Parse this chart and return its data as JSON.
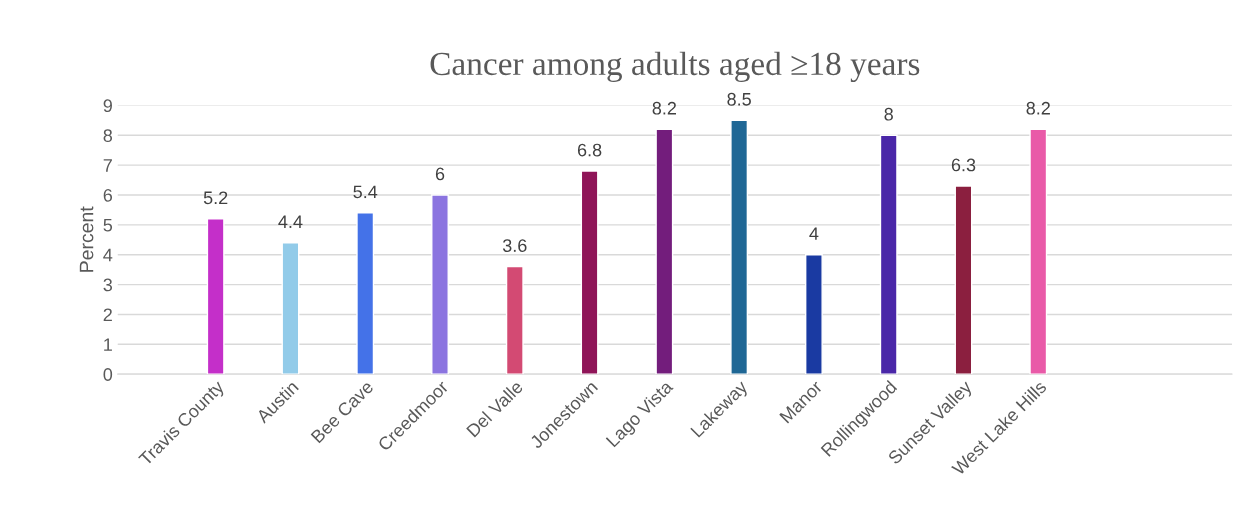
{
  "chart_data": {
    "type": "bar",
    "title": "Cancer among adults aged ≥18 years",
    "ylabel": "Percent",
    "categories": [
      "Travis County",
      "Austin",
      "Bee Cave",
      "Creedmoor",
      "Del Valle",
      "Jonestown",
      "Lago Vista",
      "Lakeway",
      "Manor",
      "Rollingwood",
      "Sunset Valley",
      "West Lake Hills"
    ],
    "values": [
      5.2,
      4.4,
      5.4,
      6,
      3.6,
      6.8,
      8.2,
      8.5,
      4,
      8,
      6.3,
      8.2
    ],
    "colors": [
      "#c42fc9",
      "#92cbe9",
      "#4472e8",
      "#8b74e0",
      "#d34a73",
      "#8f1558",
      "#731d7c",
      "#1f6795",
      "#1a3aa2",
      "#4a27a8",
      "#8b1f3f",
      "#e95aa8"
    ],
    "ylim": [
      0,
      9
    ],
    "yticks": [
      0,
      1,
      2,
      3,
      4,
      5,
      6,
      7,
      8,
      9
    ],
    "grid": "y",
    "data_labels": true
  }
}
